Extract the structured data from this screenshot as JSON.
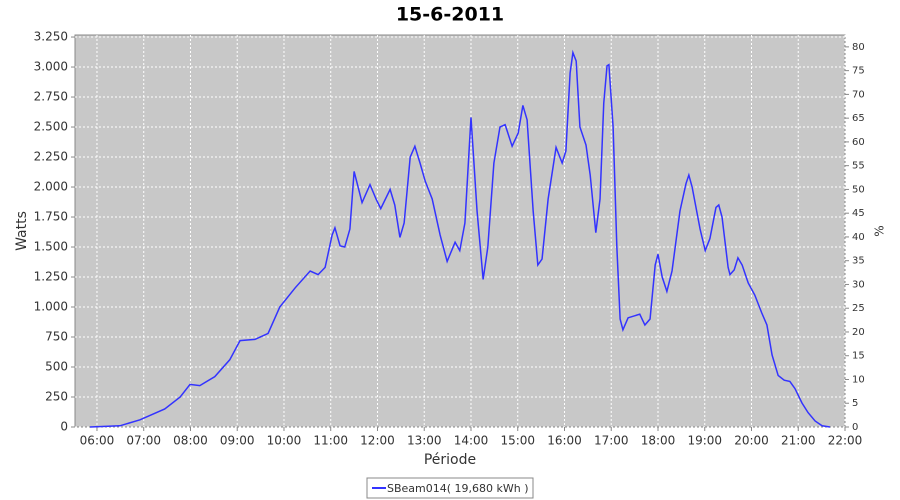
{
  "chart_data": {
    "type": "line",
    "title": "15-6-2011",
    "x_label": "Période",
    "y_label": "Watts",
    "y2_label": "%",
    "xlim": [
      5.53,
      22
    ],
    "xticks": [
      {
        "value": 6,
        "label": "06:00"
      },
      {
        "value": 7,
        "label": "07:00"
      },
      {
        "value": 8,
        "label": "08:00"
      },
      {
        "value": 9,
        "label": "09:00"
      },
      {
        "value": 10,
        "label": "10:00"
      },
      {
        "value": 11,
        "label": "11:00"
      },
      {
        "value": 12,
        "label": "12:00"
      },
      {
        "value": 13,
        "label": "13:00"
      },
      {
        "value": 14,
        "label": "14:00"
      },
      {
        "value": 15,
        "label": "15:00"
      },
      {
        "value": 16,
        "label": "16:00"
      },
      {
        "value": 17,
        "label": "17:00"
      },
      {
        "value": 18,
        "label": "18:00"
      },
      {
        "value": 19,
        "label": "19:00"
      },
      {
        "value": 20,
        "label": "20:00"
      },
      {
        "value": 21,
        "label": "21:00"
      },
      {
        "value": 22,
        "label": "22:00"
      }
    ],
    "ylim": [
      0,
      3267
    ],
    "yticks": [
      0,
      250,
      500,
      750,
      {
        "value": 1000,
        "label": "1.000"
      },
      {
        "value": 1250,
        "label": "1.250"
      },
      {
        "value": 1500,
        "label": "1.500"
      },
      {
        "value": 1750,
        "label": "1.750"
      },
      {
        "value": 2000,
        "label": "2.000"
      },
      {
        "value": 2250,
        "label": "2.250"
      },
      {
        "value": 2500,
        "label": "2.500"
      },
      {
        "value": 2750,
        "label": "2.750"
      },
      {
        "value": 3000,
        "label": "3.000"
      },
      {
        "value": 3250,
        "label": "3.250"
      }
    ],
    "y2lim": [
      0,
      82.5
    ],
    "y2ticks": [
      0,
      5,
      10,
      15,
      20,
      25,
      30,
      35,
      40,
      45,
      50,
      55,
      60,
      65,
      70,
      75,
      80
    ],
    "grid": true,
    "background": "#c8c8c8",
    "x": [
      5.85,
      6.49,
      6.92,
      7.45,
      7.78,
      7.99,
      8.2,
      8.52,
      8.84,
      9.06,
      9.38,
      9.66,
      9.91,
      10.24,
      10.56,
      10.73,
      10.88,
      11.03,
      11.09,
      11.2,
      11.3,
      11.41,
      11.5,
      11.67,
      11.84,
      11.97,
      12.07,
      12.27,
      12.37,
      12.48,
      12.57,
      12.7,
      12.8,
      12.91,
      13.02,
      13.17,
      13.34,
      13.49,
      13.66,
      13.76,
      13.87,
      14.0,
      14.13,
      14.26,
      14.36,
      14.49,
      14.62,
      14.73,
      14.88,
      15.01,
      15.11,
      15.2,
      15.33,
      15.43,
      15.52,
      15.65,
      15.82,
      15.95,
      16.03,
      16.12,
      16.18,
      16.25,
      16.33,
      16.46,
      16.55,
      16.67,
      16.76,
      16.84,
      16.91,
      16.95,
      17.04,
      17.12,
      17.19,
      17.25,
      17.36,
      17.61,
      17.72,
      17.83,
      17.94,
      18.0,
      18.09,
      18.19,
      18.3,
      18.47,
      18.6,
      18.66,
      18.73,
      18.9,
      19.01,
      19.11,
      19.24,
      19.3,
      19.37,
      19.5,
      19.54,
      19.63,
      19.71,
      19.8,
      19.93,
      20.07,
      20.22,
      20.33,
      20.44,
      20.57,
      20.7,
      20.82,
      20.93,
      21.08,
      21.21,
      21.36,
      21.51,
      21.68
    ],
    "series": [
      {
        "name": "SBeam014( 19,680 kWh )",
        "color": "#3333ff",
        "values": [
          0,
          10,
          60,
          150,
          250,
          355,
          345,
          420,
          560,
          720,
          730,
          780,
          1000,
          1160,
          1300,
          1270,
          1330,
          1600,
          1660,
          1510,
          1500,
          1650,
          2130,
          1870,
          2020,
          1900,
          1820,
          1980,
          1850,
          1580,
          1700,
          2250,
          2340,
          2200,
          2050,
          1900,
          1600,
          1380,
          1540,
          1470,
          1700,
          2580,
          1800,
          1230,
          1500,
          2200,
          2500,
          2520,
          2340,
          2450,
          2680,
          2560,
          1800,
          1350,
          1400,
          1900,
          2330,
          2200,
          2300,
          2950,
          3120,
          3050,
          2500,
          2350,
          2100,
          1620,
          1900,
          2700,
          3010,
          3020,
          2500,
          1500,
          900,
          810,
          910,
          940,
          850,
          900,
          1350,
          1440,
          1250,
          1130,
          1300,
          1800,
          2030,
          2100,
          2000,
          1650,
          1470,
          1570,
          1830,
          1850,
          1750,
          1330,
          1270,
          1310,
          1410,
          1350,
          1200,
          1100,
          950,
          850,
          600,
          430,
          390,
          380,
          320,
          200,
          120,
          50,
          10,
          0
        ]
      }
    ]
  }
}
